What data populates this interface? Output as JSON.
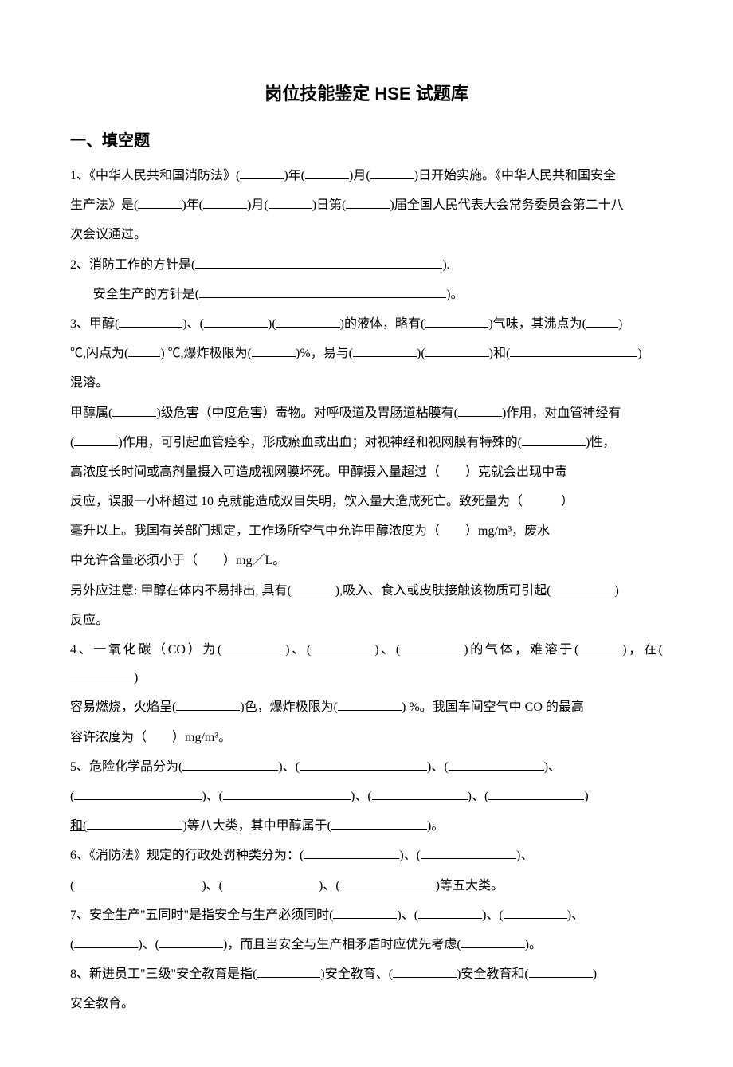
{
  "title": "岗位技能鉴定 HSE 试题库",
  "section1": {
    "heading": "一、填空题",
    "q1": {
      "p1_a": "1、《中华人民共和国消防法》(",
      "p1_b": ")年(",
      "p1_c": ")月(",
      "p1_d": ")日开始实施。《中华人民共和国安全",
      "p2_a": "生产法》是(",
      "p2_b": ")年(",
      "p2_c": ")月(",
      "p2_d": ")日第(",
      "p2_e": ")届全国人民代表大会常务委员会第二十八",
      "p3": "次会议通过。"
    },
    "q2": {
      "p1_a": "2、消防工作的方针是(",
      "p1_b": ").",
      "p2_a": "安全生产的方针是(",
      "p2_b": ")。"
    },
    "q3": {
      "p1_a": "3、甲醇(",
      "p1_b": ")、(",
      "p1_c": ")(",
      "p1_d": ")的液体，略有(",
      "p1_e": ")气味，其沸点为(",
      "p1_f": ")",
      "p2_a": "℃,闪点为(",
      "p2_b": ") ℃,爆炸极限为(",
      "p2_c": ")%，易与(",
      "p2_d": ")(",
      "p2_e": ")和(",
      "p2_f": ")",
      "p3": "混溶。",
      "p4_a": "甲醇属(",
      "p4_b": ")级危害（中度危害）毒物。对呼吸道及胃肠道粘膜有(",
      "p4_c": ")作用，对血管神经有",
      "p5_a": "(",
      "p5_b": ")作用，可引起血管痉挛，形成瘀血或出血；对视神经和视网膜有特殊的(",
      "p5_c": ")性，",
      "p6": "高浓度长时间或高剂量摄入可造成视网膜坏死。甲醇摄入量超过（　　）克就会出现中毒",
      "p7": "反应，误服一小杯超过 10 克就能造成双目失明，饮入量大造成死亡。致死量为（　　　）",
      "p8": "毫升以上。我国有关部门规定，工作场所空气中允许甲醇浓度为（　　）mg/m³，废水",
      "p9": "中允许含量必须小于（　　）mg／L。",
      "p10_a": "另外应注意: 甲醇在体内不易排出, 具有(",
      "p10_b": "),吸入、食入或皮肤接触该物质可引起(",
      "p10_c": ")",
      "p11": "反应。"
    },
    "q4": {
      "p1_a": "4、一氧化碳（CO）为(",
      "p1_b": ")、(",
      "p1_c": ")、(",
      "p1_d": ")的气体，难溶于(",
      "p1_e": ")，在(",
      "p1_f": ")",
      "p2_a": "容易燃烧，火焰呈(",
      "p2_b": ")色，爆炸极限为(",
      "p2_c": ") %。我国车间空气中 CO 的最高",
      "p3": "容许浓度为（　　）mg/m³。"
    },
    "q5": {
      "p1_a": "5、危险化学品分为(",
      "p1_b": ")、(",
      "p1_c": ")、(",
      "p1_d": ")、",
      "p2_a": "(",
      "p2_b": ")、(",
      "p2_c": ")、(",
      "p2_d": ")、(",
      "p2_e": ")",
      "p3_a": "和(",
      "p3_b": ")等八大类，其中甲醇属于(",
      "p3_c": ")。"
    },
    "q6": {
      "p1_a": "6、《消防法》规定的行政处罚种类分为：(",
      "p1_b": ")、(",
      "p1_c": ")、",
      "p2_a": "(",
      "p2_b": ")、(",
      "p2_c": ")、(",
      "p2_d": ")等五大类。"
    },
    "q7": {
      "p1_a": "7、安全生产\"五同时\"是指安全与生产必须同时(",
      "p1_b": ")、(",
      "p1_c": ")、(",
      "p1_d": ")、",
      "p2_a": "(",
      "p2_b": ")、(",
      "p2_c": ")，而且当安全与生产相矛盾时应优先考虑(",
      "p2_d": ")。"
    },
    "q8": {
      "p1_a": "8、新进员工\"三级\"安全教育是指(",
      "p1_b": ")安全教育、(",
      "p1_c": ")安全教育和(",
      "p1_d": ")",
      "p2": "安全教育。"
    }
  }
}
